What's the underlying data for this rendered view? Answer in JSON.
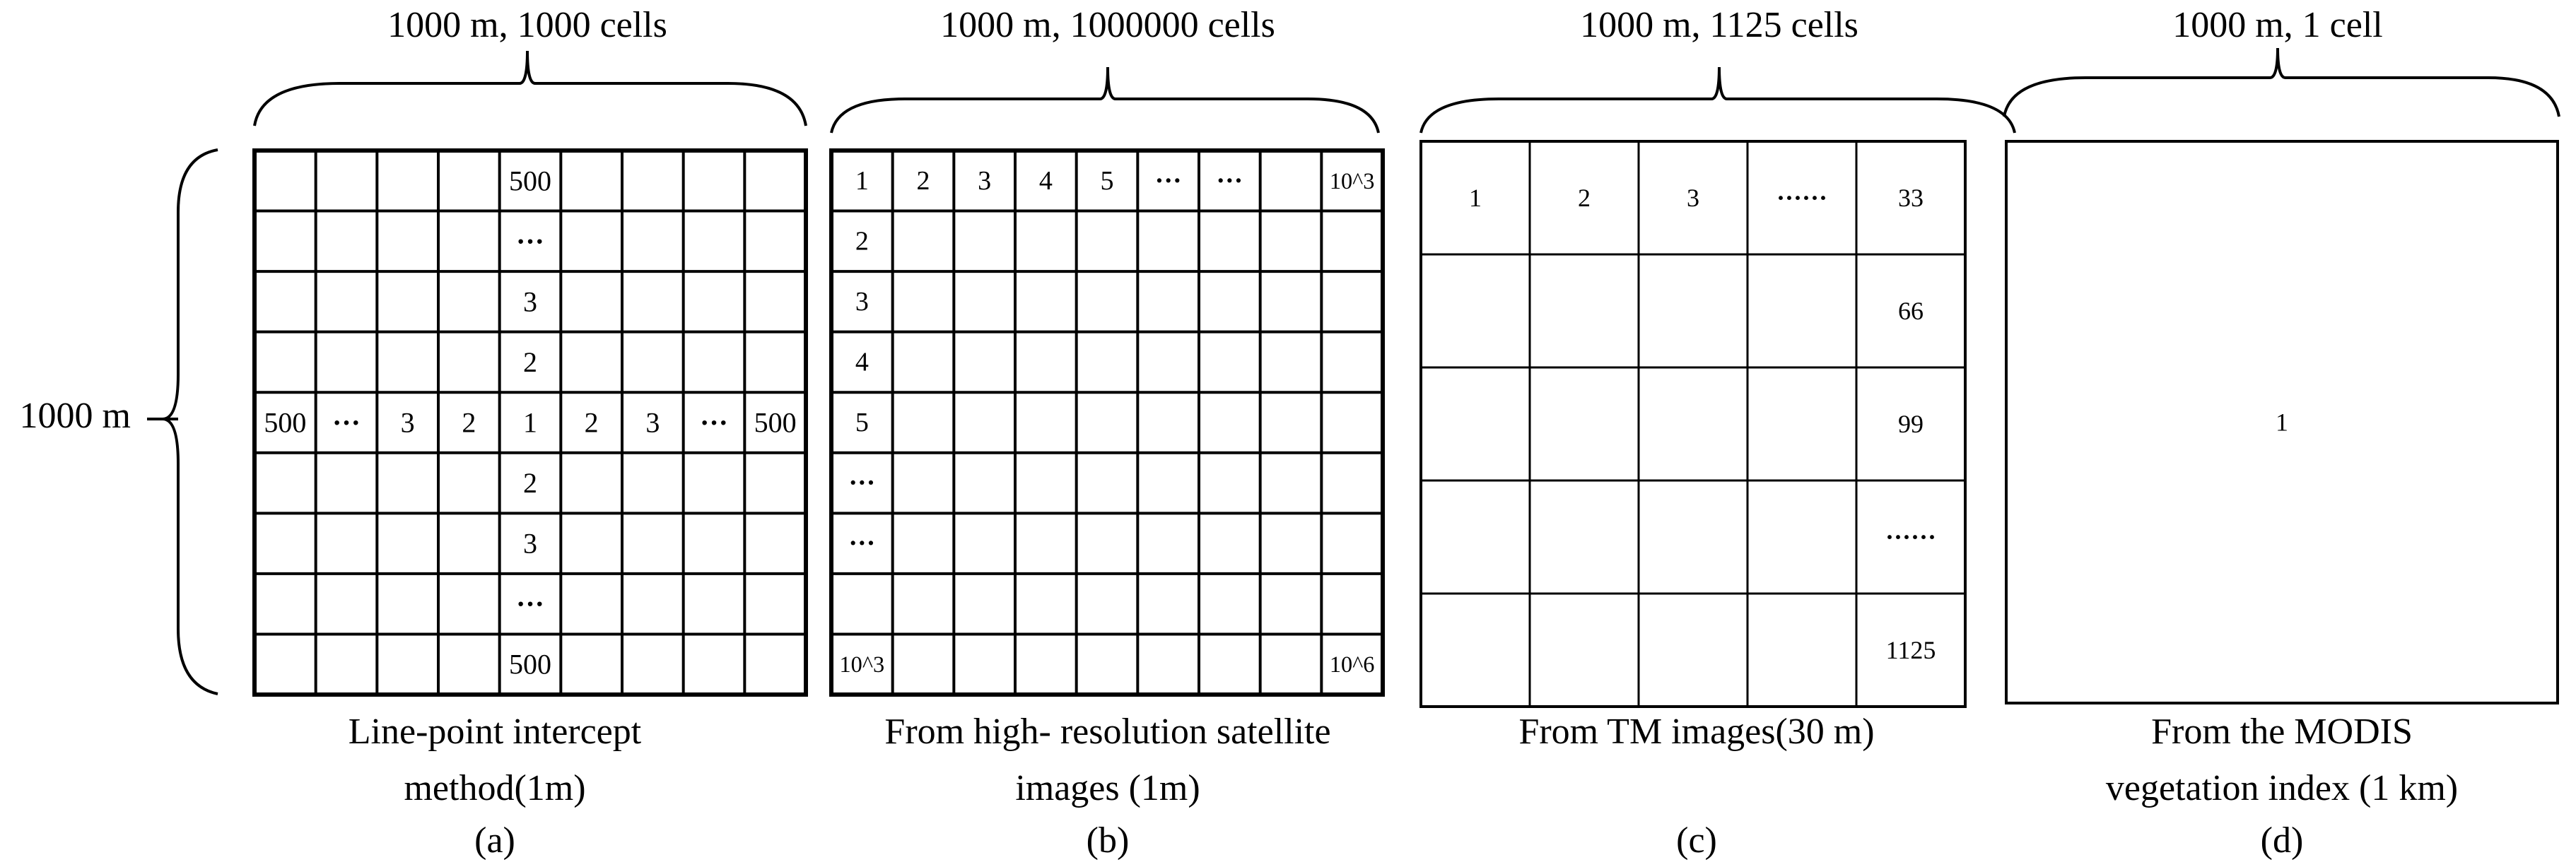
{
  "left_axis": {
    "label": "1000 m"
  },
  "panels": [
    {
      "id": "a",
      "header": "1000 m, 1000 cells",
      "caption_lines": [
        "Line-point intercept",
        "method(1m)"
      ],
      "letter": "(a)",
      "cell_labels": [
        {
          "r": 0,
          "c": 4,
          "t": "500"
        },
        {
          "r": 1,
          "c": 4,
          "t": "···"
        },
        {
          "r": 2,
          "c": 4,
          "t": "3"
        },
        {
          "r": 3,
          "c": 4,
          "t": "2"
        },
        {
          "r": 4,
          "c": 0,
          "t": "500"
        },
        {
          "r": 4,
          "c": 1,
          "t": "···"
        },
        {
          "r": 4,
          "c": 2,
          "t": "3"
        },
        {
          "r": 4,
          "c": 3,
          "t": "2"
        },
        {
          "r": 4,
          "c": 4,
          "t": "1"
        },
        {
          "r": 4,
          "c": 5,
          "t": "2"
        },
        {
          "r": 4,
          "c": 6,
          "t": "3"
        },
        {
          "r": 4,
          "c": 7,
          "t": "···"
        },
        {
          "r": 4,
          "c": 8,
          "t": "500"
        },
        {
          "r": 5,
          "c": 4,
          "t": "2"
        },
        {
          "r": 6,
          "c": 4,
          "t": "3"
        },
        {
          "r": 7,
          "c": 4,
          "t": "···"
        },
        {
          "r": 8,
          "c": 4,
          "t": "500"
        }
      ]
    },
    {
      "id": "b",
      "header": "1000 m, 1000000 cells",
      "caption_lines": [
        "From high- resolution satellite",
        "images (1m)"
      ],
      "letter": "(b)",
      "cell_labels": [
        {
          "r": 0,
          "c": 0,
          "t": "1"
        },
        {
          "r": 0,
          "c": 1,
          "t": "2"
        },
        {
          "r": 0,
          "c": 2,
          "t": "3"
        },
        {
          "r": 0,
          "c": 3,
          "t": "4"
        },
        {
          "r": 0,
          "c": 4,
          "t": "5"
        },
        {
          "r": 0,
          "c": 5,
          "t": "···"
        },
        {
          "r": 0,
          "c": 6,
          "t": "···"
        },
        {
          "r": 0,
          "c": 8,
          "t": "10^3"
        },
        {
          "r": 1,
          "c": 0,
          "t": "2"
        },
        {
          "r": 2,
          "c": 0,
          "t": "3"
        },
        {
          "r": 3,
          "c": 0,
          "t": "4"
        },
        {
          "r": 4,
          "c": 0,
          "t": "5"
        },
        {
          "r": 5,
          "c": 0,
          "t": "···"
        },
        {
          "r": 6,
          "c": 0,
          "t": "···"
        },
        {
          "r": 8,
          "c": 0,
          "t": "10^3"
        },
        {
          "r": 8,
          "c": 8,
          "t": "10^6"
        }
      ]
    },
    {
      "id": "c",
      "header": "1000 m, 1125 cells",
      "caption_lines": [
        "From TM images(30 m)"
      ],
      "letter": "(c)",
      "cell_labels": [
        {
          "r": 0,
          "c": 0,
          "t": "1"
        },
        {
          "r": 0,
          "c": 1,
          "t": "2"
        },
        {
          "r": 0,
          "c": 2,
          "t": "3"
        },
        {
          "r": 0,
          "c": 3,
          "t": "······"
        },
        {
          "r": 0,
          "c": 4,
          "t": "33"
        },
        {
          "r": 1,
          "c": 4,
          "t": "66"
        },
        {
          "r": 2,
          "c": 4,
          "t": "99"
        },
        {
          "r": 3,
          "c": 4,
          "t": "······"
        },
        {
          "r": 4,
          "c": 4,
          "t": "1125"
        }
      ]
    },
    {
      "id": "d",
      "header": "1000 m, 1 cell",
      "caption_lines": [
        "From the MODIS",
        "vegetation index (1 km)"
      ],
      "letter": "(d)",
      "cell_labels": [
        {
          "r": 0,
          "c": 0,
          "t": "1"
        }
      ]
    }
  ]
}
